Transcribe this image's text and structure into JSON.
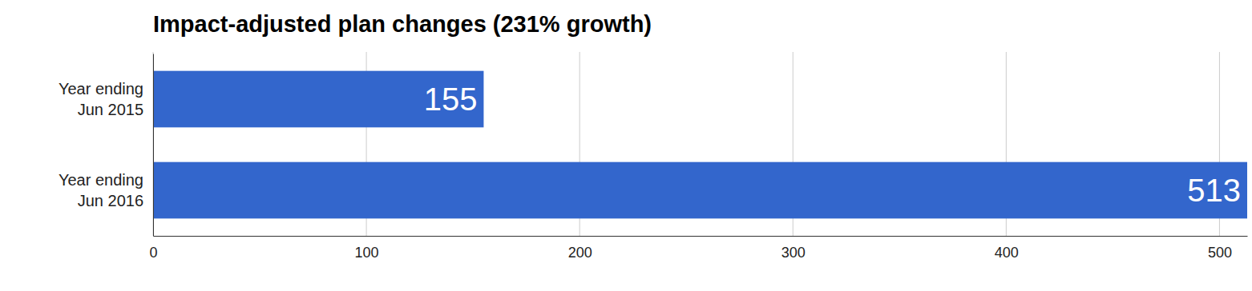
{
  "chart_data": {
    "type": "bar",
    "title": "Impact-adjusted plan changes (231% growth)",
    "orientation": "horizontal",
    "categories": [
      "Year ending\nJun 2015",
      "Year ending\nJun 2016"
    ],
    "values": [
      155,
      513
    ],
    "color": "#3366cc",
    "xlim": [
      0,
      513
    ],
    "xticks": [
      0,
      100,
      200,
      300,
      400,
      500
    ],
    "grid": true,
    "data_labels": true
  }
}
